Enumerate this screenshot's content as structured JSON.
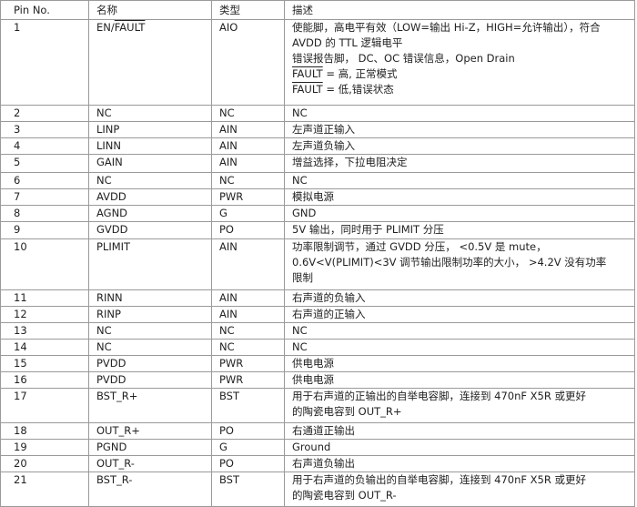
{
  "table": {
    "header": [
      "Pin No.",
      "名称",
      "类型",
      "描述"
    ],
    "rows": [
      {
        "pin": "1",
        "name": [
          {
            "text": "EN/"
          },
          {
            "text": "FAULT",
            "overline": true
          }
        ],
        "type": "AIO",
        "desc": [
          [
            {
              "text": "使能脚，高电平有效（LOW=输出 Hi-Z，HIGH=允许输出），符合"
            }
          ],
          [
            {
              "text": "AVDD 的 TTL 逻辑电平"
            }
          ],
          [
            {
              "text": "错误报告脚，  DC、OC 错误信息，Open Drain"
            }
          ],
          [
            {
              "text": "FAULT",
              "overline": true
            },
            {
              "text": " = 高, 正常模式"
            }
          ],
          [
            {
              "text": "FAULT",
              "overline": true
            },
            {
              "text": " = 低,错误状态"
            }
          ]
        ]
      },
      {
        "pin": "2",
        "name": [
          {
            "text": "NC"
          }
        ],
        "type": "NC",
        "desc": [
          [
            {
              "text": "NC"
            }
          ]
        ]
      },
      {
        "pin": "3",
        "name": [
          {
            "text": "LINP"
          }
        ],
        "type": "AIN",
        "desc": [
          [
            {
              "text": "左声道正输入"
            }
          ]
        ]
      },
      {
        "pin": "4",
        "name": [
          {
            "text": "LINN"
          }
        ],
        "type": "AIN",
        "desc": [
          [
            {
              "text": "左声道负输入"
            }
          ]
        ]
      },
      {
        "pin": "5",
        "name": [
          {
            "text": "GAIN"
          }
        ],
        "type": "AIN",
        "desc": [
          [
            {
              "text": "增益选择，下拉电阻决定"
            }
          ]
        ]
      },
      {
        "pin": "6",
        "name": [
          {
            "text": "NC"
          }
        ],
        "type": "NC",
        "desc": [
          [
            {
              "text": "NC"
            }
          ]
        ]
      },
      {
        "pin": "7",
        "name": [
          {
            "text": "AVDD"
          }
        ],
        "type": "PWR",
        "desc": [
          [
            {
              "text": "模拟电源"
            }
          ]
        ]
      },
      {
        "pin": "8",
        "name": [
          {
            "text": "AGND"
          }
        ],
        "type": "G",
        "desc": [
          [
            {
              "text": "GND"
            }
          ]
        ]
      },
      {
        "pin": "9",
        "name": [
          {
            "text": "GVDD"
          }
        ],
        "type": "PO",
        "desc": [
          [
            {
              "text": "5V 输出，同时用于 PLIMIT 分压"
            }
          ]
        ]
      },
      {
        "pin": "10",
        "name": [
          {
            "text": "PLIMIT"
          }
        ],
        "type": "AIN",
        "desc": [
          [
            {
              "text": "功率限制调节，通过 GVDD 分压，  <0.5V 是 mute，"
            }
          ],
          [
            {
              "text": "0.6V<V(PLIMIT)<3V 调节输出限制功率的大小，  >4.2V 没有功率"
            }
          ],
          [
            {
              "text": "限制"
            }
          ]
        ]
      },
      {
        "pin": "11",
        "name": [
          {
            "text": "RINN"
          }
        ],
        "type": "AIN",
        "desc": [
          [
            {
              "text": "右声道的负输入"
            }
          ]
        ]
      },
      {
        "pin": "12",
        "name": [
          {
            "text": "RINP"
          }
        ],
        "type": "AIN",
        "desc": [
          [
            {
              "text": "右声道的正输入"
            }
          ]
        ]
      },
      {
        "pin": "13",
        "name": [
          {
            "text": "NC"
          }
        ],
        "type": "NC",
        "desc": [
          [
            {
              "text": "NC"
            }
          ]
        ]
      },
      {
        "pin": "14",
        "name": [
          {
            "text": "NC"
          }
        ],
        "type": "NC",
        "desc": [
          [
            {
              "text": "NC"
            }
          ]
        ]
      },
      {
        "pin": "15",
        "name": [
          {
            "text": "PVDD"
          }
        ],
        "type": "PWR",
        "desc": [
          [
            {
              "text": "供电电源"
            }
          ]
        ]
      },
      {
        "pin": "16",
        "name": [
          {
            "text": "PVDD"
          }
        ],
        "type": "PWR",
        "desc": [
          [
            {
              "text": "供电电源"
            }
          ]
        ]
      },
      {
        "pin": "17",
        "name": [
          {
            "text": "BST_R+"
          }
        ],
        "type": "BST",
        "desc": [
          [
            {
              "text": "用于右声道的正输出的自举电容脚，连接到 470nF X5R 或更好"
            }
          ],
          [
            {
              "text": "的陶瓷电容到 OUT_R+"
            }
          ]
        ]
      },
      {
        "pin": "18",
        "name": [
          {
            "text": "OUT_R+"
          }
        ],
        "type": "PO",
        "desc": [
          [
            {
              "text": "右通道正输出"
            }
          ]
        ]
      },
      {
        "pin": "19",
        "name": [
          {
            "text": "PGND"
          }
        ],
        "type": "G",
        "desc": [
          [
            {
              "text": "Ground"
            }
          ]
        ]
      },
      {
        "pin": "20",
        "name": [
          {
            "text": "OUT_R-"
          }
        ],
        "type": "PO",
        "desc": [
          [
            {
              "text": "右声道负输出"
            }
          ]
        ]
      },
      {
        "pin": "21",
        "name": [
          {
            "text": "BST_R-"
          }
        ],
        "type": "BST",
        "desc": [
          [
            {
              "text": "用于右声道的负输出的自举电容脚，连接到 470nF X5R 或更好"
            }
          ],
          [
            {
              "text": "的陶瓷电容到 OUT_R-"
            }
          ]
        ]
      }
    ]
  }
}
